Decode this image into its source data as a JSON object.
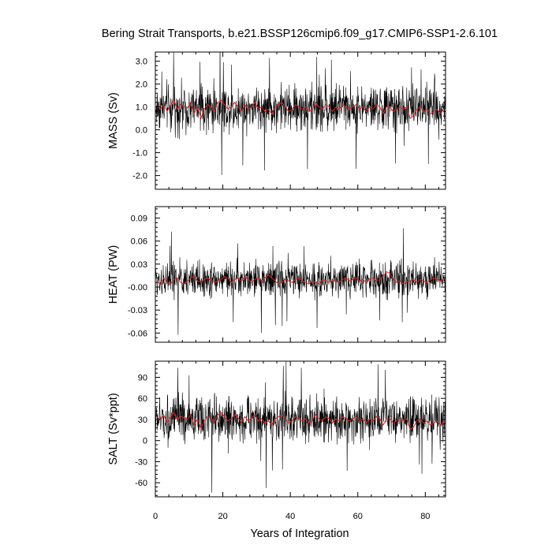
{
  "chart_data": {
    "title": "Bering Strait Transports, b.e21.BSSP126cmip6.f09_g17.CMIP6-SSP1-2.6.101",
    "xlabel": "Years of Integration",
    "xlim": [
      0,
      86
    ],
    "xticks": [
      0,
      20,
      40,
      60,
      80
    ],
    "colors": {
      "raw": "#000000",
      "smooth": "#e02020"
    },
    "panels": [
      {
        "type": "line",
        "ylabel": "MASS (Sv)",
        "ylim": [
          -2.6,
          3.4
        ],
        "yticks": [
          -2.0,
          -1.0,
          0.0,
          1.0,
          2.0,
          3.0
        ],
        "ytick_labels": [
          "-2.0",
          "-1.0",
          "0.0",
          "1.0",
          "2.0",
          "3.0"
        ],
        "monthly_mean": 0.95,
        "monthly_spread": 0.75,
        "smoothed": [
          1.0,
          0.9,
          1.1,
          0.8,
          1.1,
          1.3,
          0.9,
          1.1,
          1.0,
          0.95,
          1.2,
          0.7,
          1.0,
          0.5,
          0.9,
          1.1,
          1.0,
          0.8,
          1.2,
          1.3,
          1.1,
          0.9,
          1.0,
          1.2,
          1.0,
          0.8,
          1.1,
          0.9,
          1.0,
          1.2,
          0.9,
          1.0,
          0.8,
          0.9,
          0.7,
          1.0,
          1.1,
          1.2,
          1.0,
          0.8,
          0.9,
          1.1,
          1.0,
          0.9,
          1.0,
          0.8,
          0.9,
          1.2,
          1.0,
          0.9,
          1.1,
          1.0,
          0.8,
          1.0,
          0.9,
          1.1,
          1.0,
          0.9,
          1.0,
          1.1,
          0.9,
          1.0,
          0.8,
          1.0,
          0.9,
          1.1,
          1.0,
          0.7,
          1.0,
          1.0,
          0.8,
          0.9,
          1.0,
          0.9,
          1.0,
          0.5,
          0.6,
          0.9,
          1.0,
          0.8,
          0.9,
          0.7,
          0.8,
          0.9,
          0.7,
          0.9
        ]
      },
      {
        "type": "line",
        "ylabel": "HEAT (PW)",
        "ylim": [
          -0.072,
          0.105
        ],
        "yticks": [
          -0.06,
          -0.03,
          0.0,
          0.03,
          0.06,
          0.09
        ],
        "ytick_labels": [
          "-0.06",
          "-0.03",
          "-0.00",
          "0.03",
          "0.06",
          "0.09"
        ],
        "monthly_mean": 0.01,
        "monthly_spread": 0.017,
        "smoothed": [
          0.008,
          0.004,
          0.012,
          0.006,
          0.004,
          0.01,
          0.012,
          0.006,
          0.004,
          0.008,
          0.012,
          0.014,
          0.008,
          0.006,
          0.01,
          0.012,
          0.008,
          0.006,
          0.008,
          0.01,
          0.014,
          0.012,
          0.006,
          0.01,
          0.012,
          0.008,
          0.014,
          0.01,
          0.006,
          0.01,
          0.012,
          0.008,
          0.012,
          0.016,
          0.012,
          0.008,
          0.004,
          0.006,
          0.01,
          0.008,
          0.006,
          0.01,
          0.012,
          0.008,
          0.006,
          0.004,
          0.008,
          0.006,
          0.004,
          0.01,
          0.008,
          0.006,
          0.01,
          0.008,
          0.006,
          0.01,
          0.012,
          0.008,
          0.01,
          0.012,
          0.008,
          0.01,
          0.006,
          0.01,
          0.012,
          0.008,
          0.01,
          0.014,
          0.02,
          0.018,
          0.01,
          0.006,
          0.008,
          0.004,
          0.006,
          0.008,
          0.01,
          0.006,
          0.01,
          0.008,
          0.006,
          0.01,
          0.012,
          0.01,
          0.008,
          0.012
        ]
      },
      {
        "type": "line",
        "ylabel": "SALT (Sv*ppt)",
        "ylim": [
          -80,
          113
        ],
        "yticks": [
          -60,
          -30,
          0,
          30,
          60,
          90
        ],
        "ytick_labels": [
          "-60",
          "-30",
          "0",
          "30",
          "60",
          "90"
        ],
        "monthly_mean": 30,
        "monthly_spread": 24,
        "smoothed": [
          33,
          30,
          36,
          26,
          34,
          40,
          29,
          35,
          32,
          30,
          37,
          22,
          31,
          17,
          28,
          34,
          32,
          26,
          37,
          40,
          34,
          28,
          31,
          37,
          32,
          26,
          34,
          28,
          32,
          37,
          28,
          31,
          25,
          28,
          22,
          31,
          34,
          37,
          31,
          25,
          28,
          34,
          31,
          28,
          31,
          25,
          28,
          37,
          31,
          28,
          34,
          31,
          25,
          31,
          28,
          34,
          31,
          28,
          31,
          34,
          28,
          31,
          25,
          31,
          28,
          34,
          31,
          22,
          31,
          31,
          25,
          28,
          31,
          28,
          31,
          16,
          19,
          28,
          31,
          25,
          28,
          22,
          25,
          28,
          22,
          28
        ]
      }
    ]
  }
}
